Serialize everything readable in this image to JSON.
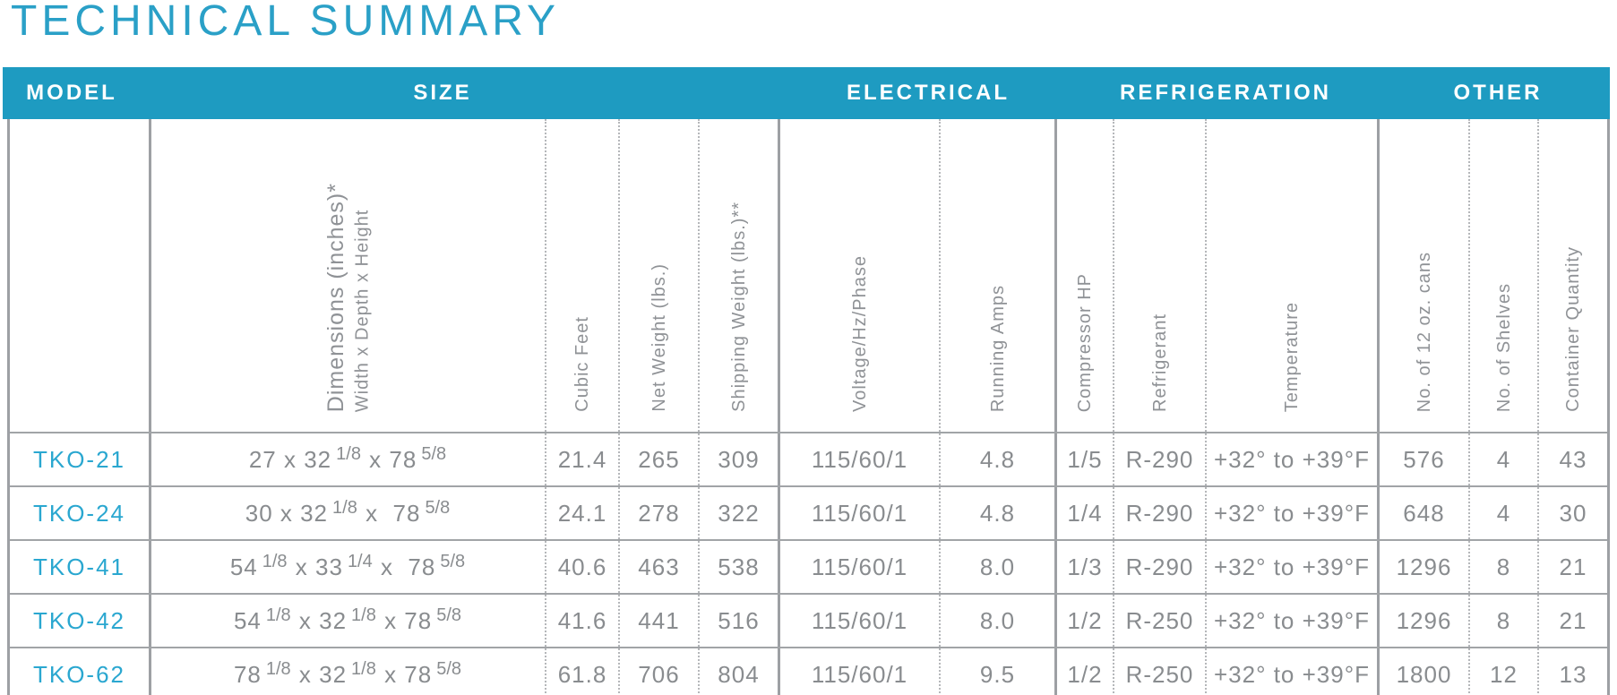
{
  "title": "TECHNICAL SUMMARY",
  "colors": {
    "bar_blue": "#1e9bc1",
    "title_blue": "#2aa0c7",
    "model_blue": "#2aa7d0",
    "data_gray": "#898c8f",
    "header_gray": "#8f9296",
    "border_gray": "#9da0a4"
  },
  "table": {
    "groups": [
      {
        "label": "MODEL"
      },
      {
        "label": "SIZE"
      },
      {
        "label": "ELECTRICAL"
      },
      {
        "label": "REFRIGERATION"
      },
      {
        "label": "OTHER"
      }
    ],
    "columns": [
      {
        "id": "model",
        "header": ""
      },
      {
        "id": "dimensions",
        "header": "Dimensions (inches)*",
        "subheader": "Width x Depth x Height"
      },
      {
        "id": "cubic_feet",
        "header": "Cubic Feet"
      },
      {
        "id": "net_weight",
        "header": "Net Weight (lbs.)"
      },
      {
        "id": "shipping_weight",
        "header": "Shipping Weight (lbs.)**"
      },
      {
        "id": "voltage_hz_phase",
        "header": "Voltage/Hz/Phase"
      },
      {
        "id": "running_amps",
        "header": "Running Amps"
      },
      {
        "id": "compressor_hp",
        "header": "Compressor HP"
      },
      {
        "id": "refrigerant",
        "header": "Refrigerant"
      },
      {
        "id": "temperature",
        "header": "Temperature"
      },
      {
        "id": "cans_12oz",
        "header": "No. of 12 oz. cans"
      },
      {
        "id": "shelves",
        "header": "No. of Shelves"
      },
      {
        "id": "container_quantity",
        "header": "Container Quantity"
      }
    ],
    "rows": [
      {
        "model": "TKO-21",
        "dimensions": "27 x 32[1/8] x 78[5/8]",
        "cubic_feet": "21.4",
        "net_weight": "265",
        "shipping_weight": "309",
        "voltage_hz_phase": "115/60/1",
        "running_amps": "4.8",
        "compressor_hp": "1/5",
        "refrigerant": "R-290",
        "temperature": "+32° to +39°F",
        "cans_12oz": "576",
        "shelves": "4",
        "container_quantity": "43"
      },
      {
        "model": "TKO-24",
        "dimensions": "30 x 32[1/8] x  78[5/8]",
        "cubic_feet": "24.1",
        "net_weight": "278",
        "shipping_weight": "322",
        "voltage_hz_phase": "115/60/1",
        "running_amps": "4.8",
        "compressor_hp": "1/4",
        "refrigerant": "R-290",
        "temperature": "+32° to +39°F",
        "cans_12oz": "648",
        "shelves": "4",
        "container_quantity": "30"
      },
      {
        "model": "TKO-41",
        "dimensions": "54[1/8] x 33[1/4] x  78[5/8]",
        "cubic_feet": "40.6",
        "net_weight": "463",
        "shipping_weight": "538",
        "voltage_hz_phase": "115/60/1",
        "running_amps": "8.0",
        "compressor_hp": "1/3",
        "refrigerant": "R-290",
        "temperature": "+32° to +39°F",
        "cans_12oz": "1296",
        "shelves": "8",
        "container_quantity": "21"
      },
      {
        "model": "TKO-42",
        "dimensions": "54[1/8] x 32[1/8] x 78[5/8]",
        "cubic_feet": "41.6",
        "net_weight": "441",
        "shipping_weight": "516",
        "voltage_hz_phase": "115/60/1",
        "running_amps": "8.0",
        "compressor_hp": "1/2",
        "refrigerant": "R-250",
        "temperature": "+32° to +39°F",
        "cans_12oz": "1296",
        "shelves": "8",
        "container_quantity": "21"
      },
      {
        "model": "TKO-62",
        "dimensions": "78[1/8] x 32[1/8] x 78[5/8]",
        "cubic_feet": "61.8",
        "net_weight": "706",
        "shipping_weight": "804",
        "voltage_hz_phase": "115/60/1",
        "running_amps": "9.5",
        "compressor_hp": "1/2",
        "refrigerant": "R-250",
        "temperature": "+32° to +39°F",
        "cans_12oz": "1800",
        "shelves": "12",
        "container_quantity": "13"
      }
    ]
  }
}
